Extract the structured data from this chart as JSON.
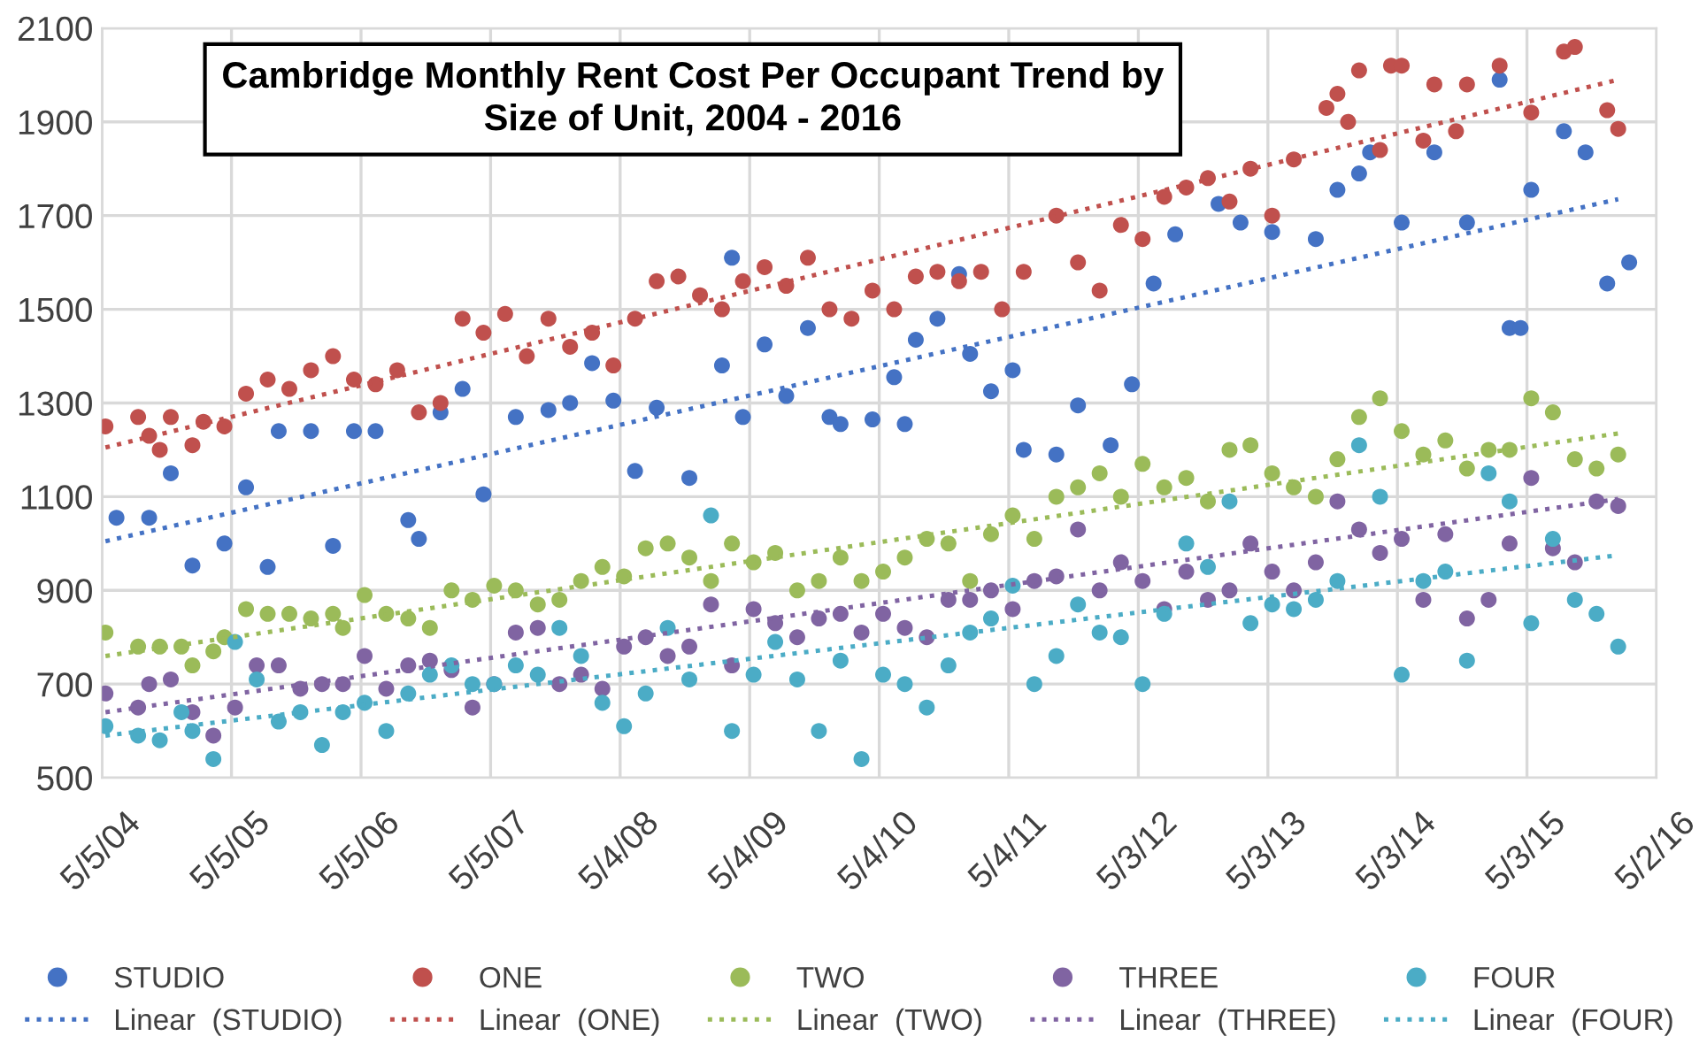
{
  "chart_data": {
    "type": "scatter",
    "title": "Cambridge Monthly Rent Cost Per Occupant Trend by Size of Unit, 2004 - 2016",
    "xlim": [
      "2004-05-05",
      "2016-05-02"
    ],
    "xticks": [
      {
        "value": "2004-05-05",
        "label": "5/5/04"
      },
      {
        "value": "2005-05-05",
        "label": "5/5/05"
      },
      {
        "value": "2006-05-05",
        "label": "5/5/06"
      },
      {
        "value": "2007-05-05",
        "label": "5/5/07"
      },
      {
        "value": "2008-05-04",
        "label": "5/4/08"
      },
      {
        "value": "2009-05-04",
        "label": "5/4/09"
      },
      {
        "value": "2010-05-04",
        "label": "5/4/10"
      },
      {
        "value": "2011-05-04",
        "label": "5/4/11"
      },
      {
        "value": "2012-05-03",
        "label": "5/3/12"
      },
      {
        "value": "2013-05-03",
        "label": "5/3/13"
      },
      {
        "value": "2014-05-03",
        "label": "5/3/14"
      },
      {
        "value": "2015-05-03",
        "label": "5/3/15"
      },
      {
        "value": "2016-05-02",
        "label": "5/2/16"
      }
    ],
    "ylim": [
      500,
      2100
    ],
    "yticks": [
      500,
      700,
      900,
      1100,
      1300,
      1500,
      1700,
      1900,
      2100
    ],
    "grid": true,
    "legend": "bottom",
    "marker": "circle",
    "series": [
      {
        "name": "STUDIO",
        "color": "#4472c4",
        "x": [
          "2004-06",
          "2004-09",
          "2004-11",
          "2005-01",
          "2005-04",
          "2005-06",
          "2005-08",
          "2005-09",
          "2005-12",
          "2006-02",
          "2006-04",
          "2006-06",
          "2006-09",
          "2006-10",
          "2006-12",
          "2007-02",
          "2007-04",
          "2007-07",
          "2007-10",
          "2007-12",
          "2008-02",
          "2008-04",
          "2008-06",
          "2008-08",
          "2008-11",
          "2009-02",
          "2009-03",
          "2009-04",
          "2009-06",
          "2009-08",
          "2009-10",
          "2009-12",
          "2010-01",
          "2010-04",
          "2010-06",
          "2010-07",
          "2010-08",
          "2010-10",
          "2010-12",
          "2011-01",
          "2011-03",
          "2011-05",
          "2011-06",
          "2011-09",
          "2011-11",
          "2012-02",
          "2012-04",
          "2012-06",
          "2012-08",
          "2012-12",
          "2013-02",
          "2013-05",
          "2013-09",
          "2013-11",
          "2014-01",
          "2014-02",
          "2014-05",
          "2014-08",
          "2014-11",
          "2015-02",
          "2015-03",
          "2015-04",
          "2015-05",
          "2015-08",
          "2015-10",
          "2015-12",
          "2016-02"
        ],
        "values": [
          1055,
          1055,
          1150,
          953,
          1000,
          1120,
          950,
          1240,
          1240,
          995,
          1240,
          1240,
          1050,
          1010,
          1280,
          1330,
          1105,
          1270,
          1285,
          1300,
          1385,
          1305,
          1155,
          1290,
          1140,
          1380,
          1610,
          1270,
          1425,
          1315,
          1460,
          1270,
          1255,
          1265,
          1355,
          1255,
          1435,
          1480,
          1575,
          1405,
          1325,
          1370,
          1200,
          1190,
          1295,
          1210,
          1340,
          1555,
          1660,
          1725,
          1685,
          1665,
          1650,
          1755,
          1790,
          1835,
          1685,
          1835,
          1685,
          1990,
          1460,
          1460,
          1755,
          1880,
          1835,
          1555,
          1600
        ]
      },
      {
        "name": "ONE",
        "color": "#c0504d",
        "x": [
          "2004-05-15",
          "2004-08",
          "2004-09",
          "2004-10",
          "2004-11",
          "2005-01",
          "2005-02",
          "2005-04",
          "2005-06",
          "2005-08",
          "2005-10",
          "2005-12",
          "2006-02",
          "2006-04",
          "2006-06",
          "2006-08",
          "2006-10",
          "2006-12",
          "2007-02",
          "2007-04",
          "2007-06",
          "2007-08",
          "2007-10",
          "2007-12",
          "2008-02",
          "2008-04",
          "2008-06",
          "2008-08",
          "2008-10",
          "2008-12",
          "2009-02",
          "2009-04",
          "2009-06",
          "2009-08",
          "2009-10",
          "2009-12",
          "2010-02",
          "2010-04",
          "2010-06",
          "2010-08",
          "2010-10",
          "2010-12",
          "2011-02",
          "2011-04",
          "2011-06",
          "2011-09",
          "2011-11",
          "2012-01",
          "2012-03",
          "2012-05",
          "2012-07",
          "2012-09",
          "2012-11",
          "2013-01",
          "2013-03",
          "2013-05",
          "2013-07",
          "2013-10",
          "2013-11",
          "2013-12",
          "2014-01",
          "2014-03",
          "2014-04",
          "2014-05",
          "2014-07",
          "2014-08",
          "2014-10",
          "2014-11",
          "2015-02",
          "2015-05",
          "2015-08",
          "2015-09",
          "2015-12",
          "2016-01"
        ],
        "values": [
          1250,
          1270,
          1230,
          1200,
          1270,
          1210,
          1260,
          1250,
          1320,
          1350,
          1330,
          1370,
          1400,
          1350,
          1340,
          1370,
          1280,
          1300,
          1480,
          1450,
          1490,
          1400,
          1480,
          1420,
          1450,
          1380,
          1480,
          1560,
          1570,
          1530,
          1500,
          1560,
          1590,
          1550,
          1610,
          1500,
          1480,
          1540,
          1500,
          1570,
          1580,
          1560,
          1580,
          1500,
          1580,
          1700,
          1600,
          1540,
          1680,
          1650,
          1740,
          1760,
          1780,
          1730,
          1800,
          1700,
          1820,
          1930,
          1960,
          1900,
          2010,
          1840,
          2020,
          2020,
          1860,
          1980,
          1880,
          1980,
          2020,
          1920,
          2050,
          2060,
          1925,
          1885
        ]
      },
      {
        "name": "TWO",
        "color": "#9bbb59",
        "x": [
          "2004-05-15",
          "2004-08",
          "2004-10",
          "2004-12",
          "2005-01",
          "2005-03",
          "2005-04",
          "2005-06",
          "2005-08",
          "2005-10",
          "2005-12",
          "2006-02",
          "2006-03",
          "2006-05",
          "2006-07",
          "2006-09",
          "2006-11",
          "2007-01",
          "2007-03",
          "2007-05",
          "2007-07",
          "2007-09",
          "2007-11",
          "2008-01",
          "2008-03",
          "2008-05",
          "2008-07",
          "2008-09",
          "2008-11",
          "2009-01",
          "2009-03",
          "2009-05",
          "2009-07",
          "2009-09",
          "2009-11",
          "2010-01",
          "2010-03",
          "2010-05",
          "2010-07",
          "2010-09",
          "2010-11",
          "2011-01",
          "2011-03",
          "2011-05",
          "2011-07",
          "2011-09",
          "2011-11",
          "2012-01",
          "2012-03",
          "2012-05",
          "2012-07",
          "2012-09",
          "2012-11",
          "2013-01",
          "2013-03",
          "2013-05",
          "2013-07",
          "2013-09",
          "2013-11",
          "2014-01",
          "2014-03",
          "2014-05",
          "2014-07",
          "2014-09",
          "2014-11",
          "2015-01",
          "2015-03",
          "2015-05",
          "2015-07",
          "2015-09",
          "2015-11",
          "2016-01"
        ],
        "values": [
          810,
          780,
          780,
          780,
          740,
          770,
          800,
          860,
          850,
          850,
          840,
          850,
          820,
          890,
          850,
          840,
          820,
          900,
          880,
          910,
          900,
          870,
          880,
          920,
          950,
          930,
          990,
          1000,
          970,
          920,
          1000,
          960,
          980,
          900,
          920,
          970,
          920,
          940,
          970,
          1010,
          1000,
          920,
          1020,
          1060,
          1010,
          1100,
          1120,
          1150,
          1100,
          1170,
          1120,
          1140,
          1090,
          1200,
          1210,
          1150,
          1120,
          1100,
          1180,
          1270,
          1310,
          1240,
          1190,
          1220,
          1160,
          1200,
          1200,
          1310,
          1280,
          1180,
          1160,
          1190
        ]
      },
      {
        "name": "THREE",
        "color": "#8064a2",
        "x": [
          "2004-05-15",
          "2004-08",
          "2004-09",
          "2004-11",
          "2005-01",
          "2005-03",
          "2005-05",
          "2005-07",
          "2005-09",
          "2005-11",
          "2006-01",
          "2006-03",
          "2006-05",
          "2006-07",
          "2006-09",
          "2006-11",
          "2007-01",
          "2007-03",
          "2007-05",
          "2007-07",
          "2007-09",
          "2007-11",
          "2008-01",
          "2008-03",
          "2008-05",
          "2008-07",
          "2008-09",
          "2008-11",
          "2009-01",
          "2009-03",
          "2009-05",
          "2009-07",
          "2009-09",
          "2009-11",
          "2010-01",
          "2010-03",
          "2010-05",
          "2010-07",
          "2010-09",
          "2010-11",
          "2011-01",
          "2011-03",
          "2011-05",
          "2011-07",
          "2011-09",
          "2011-11",
          "2012-01",
          "2012-03",
          "2012-05",
          "2012-07",
          "2012-09",
          "2012-11",
          "2013-01",
          "2013-03",
          "2013-05",
          "2013-07",
          "2013-09",
          "2013-11",
          "2014-01",
          "2014-03",
          "2014-05",
          "2014-07",
          "2014-09",
          "2014-11",
          "2015-01",
          "2015-03",
          "2015-05",
          "2015-07",
          "2015-09",
          "2015-11",
          "2016-01"
        ],
        "values": [
          680,
          650,
          700,
          710,
          640,
          590,
          650,
          740,
          740,
          690,
          700,
          700,
          760,
          690,
          740,
          750,
          730,
          650,
          700,
          810,
          820,
          700,
          720,
          690,
          780,
          800,
          760,
          780,
          870,
          740,
          860,
          830,
          800,
          840,
          850,
          810,
          850,
          820,
          800,
          880,
          880,
          900,
          860,
          920,
          930,
          1030,
          900,
          960,
          920,
          860,
          940,
          880,
          900,
          1000,
          940,
          900,
          960,
          1090,
          1030,
          980,
          1010,
          880,
          1020,
          840,
          880,
          1000,
          1140,
          990,
          960,
          1090,
          1080
        ]
      },
      {
        "name": "FOUR",
        "color": "#4bacc6",
        "x": [
          "2004-05-15",
          "2004-08",
          "2004-10",
          "2004-12",
          "2005-01",
          "2005-03",
          "2005-05",
          "2005-07",
          "2005-09",
          "2005-11",
          "2006-01",
          "2006-03",
          "2006-05",
          "2006-07",
          "2006-09",
          "2006-11",
          "2007-01",
          "2007-03",
          "2007-05",
          "2007-07",
          "2007-09",
          "2007-11",
          "2008-01",
          "2008-03",
          "2008-05",
          "2008-07",
          "2008-09",
          "2008-11",
          "2009-01",
          "2009-03",
          "2009-05",
          "2009-07",
          "2009-09",
          "2009-11",
          "2010-01",
          "2010-03",
          "2010-05",
          "2010-07",
          "2010-09",
          "2010-11",
          "2011-01",
          "2011-03",
          "2011-05",
          "2011-07",
          "2011-09",
          "2011-11",
          "2012-01",
          "2012-03",
          "2012-05",
          "2012-07",
          "2012-09",
          "2012-11",
          "2013-01",
          "2013-03",
          "2013-05",
          "2013-07",
          "2013-09",
          "2013-11",
          "2014-01",
          "2014-03",
          "2014-05",
          "2014-07",
          "2014-09",
          "2014-11",
          "2015-01",
          "2015-03",
          "2015-05",
          "2015-07",
          "2015-09",
          "2015-11",
          "2016-01"
        ],
        "values": [
          610,
          590,
          580,
          640,
          600,
          540,
          790,
          710,
          620,
          640,
          570,
          640,
          660,
          600,
          680,
          720,
          740,
          700,
          700,
          740,
          720,
          820,
          760,
          660,
          610,
          680,
          820,
          710,
          1060,
          600,
          720,
          790,
          710,
          600,
          750,
          540,
          720,
          700,
          650,
          740,
          810,
          840,
          910,
          700,
          760,
          870,
          810,
          800,
          700,
          850,
          1000,
          950,
          1090,
          830,
          870,
          860,
          880,
          920,
          1210,
          1100,
          720,
          920,
          940,
          750,
          1150,
          1090,
          830,
          1010,
          880,
          850,
          780
        ]
      },
      {
        "name": "Linear  (STUDIO)",
        "type": "line",
        "line_style": "dotted",
        "marker": "none",
        "color": "#4472c4",
        "x": [
          "2004-05-15",
          "2016-01"
        ],
        "values": [
          1005,
          1735
        ]
      },
      {
        "name": "Linear  (ONE)",
        "type": "line",
        "line_style": "dotted",
        "marker": "none",
        "color": "#c0504d",
        "x": [
          "2004-05-15",
          "2016-01"
        ],
        "values": [
          1205,
          1990
        ]
      },
      {
        "name": "Linear  (TWO)",
        "type": "line",
        "line_style": "dotted",
        "marker": "none",
        "color": "#9bbb59",
        "x": [
          "2004-05-15",
          "2016-01"
        ],
        "values": [
          760,
          1235
        ]
      },
      {
        "name": "Linear  (THREE)",
        "type": "line",
        "line_style": "dotted",
        "marker": "none",
        "color": "#8064a2",
        "x": [
          "2004-05-15",
          "2016-01"
        ],
        "values": [
          640,
          1095
        ]
      },
      {
        "name": "Linear  (FOUR)",
        "type": "line",
        "line_style": "dotted",
        "marker": "none",
        "color": "#4bacc6",
        "x": [
          "2004-05-15",
          "2016-01"
        ],
        "values": [
          590,
          975
        ]
      }
    ]
  }
}
